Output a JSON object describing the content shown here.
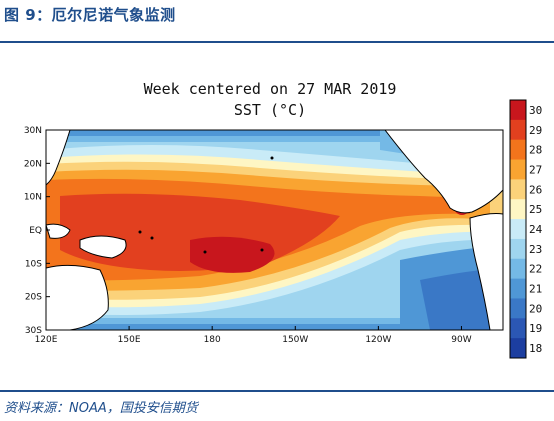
{
  "figure": {
    "title": "图 9：厄尔尼诺气象监测",
    "source": "资料来源：NOAA，国投安信期货"
  },
  "map": {
    "heading": "Week centered on 27 MAR 2019",
    "subheading": "SST (°C)",
    "lat_labels": [
      "30N",
      "20N",
      "10N",
      "EQ",
      "10S",
      "20S",
      "30S"
    ],
    "lon_labels": [
      "120E",
      "150E",
      "180",
      "150W",
      "120W",
      "90W"
    ],
    "colorbar": {
      "labels": [
        "30",
        "29",
        "28",
        "27",
        "26",
        "25",
        "24",
        "23",
        "22",
        "21",
        "20",
        "19",
        "18"
      ],
      "colors": [
        "#c8161d",
        "#e2401f",
        "#f3741c",
        "#f9a431",
        "#fbd27a",
        "#fef6c4",
        "#c9ebf7",
        "#9fd5ef",
        "#74b9e6",
        "#4f97d6",
        "#3a78c6",
        "#2b57b4",
        "#1c3ea0"
      ]
    }
  }
}
